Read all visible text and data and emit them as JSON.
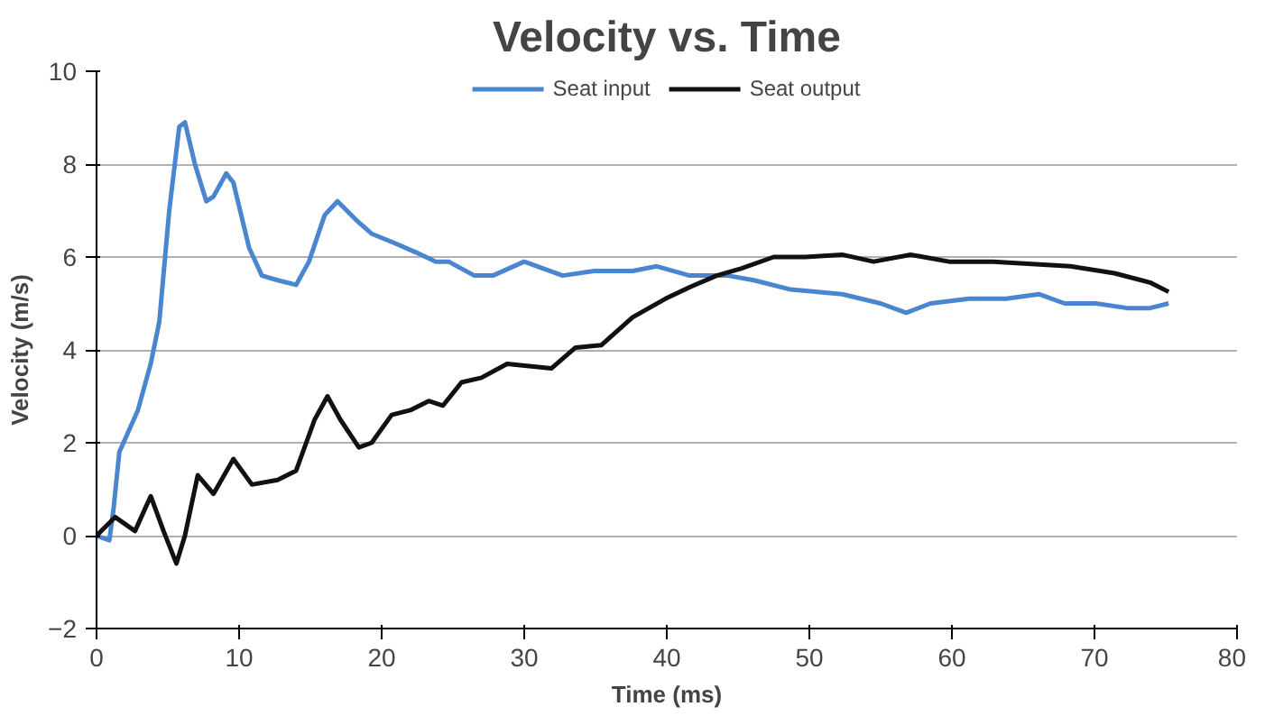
{
  "chart_data": {
    "type": "line",
    "title": "Velocity vs. Time",
    "xlabel": "Time (ms)",
    "ylabel": "Velocity (m/s)",
    "xlim": [
      0,
      80
    ],
    "xticks": [
      0,
      10,
      20,
      30,
      40,
      50,
      60,
      70,
      80
    ],
    "ylim": [
      -2,
      10
    ],
    "yticks": [
      -2,
      0,
      2,
      4,
      6,
      8,
      10
    ],
    "grid": "y",
    "legend": "top",
    "marker": "none",
    "line_style": "solid",
    "series": [
      {
        "name": "Seat input",
        "color": "#4a86d0",
        "x": [
          0,
          0.9,
          1.2,
          1.6,
          2.9,
          3.8,
          4.4,
          5.1,
          5.8,
          6.2,
          6.9,
          7.7,
          8.2,
          9.1,
          9.6,
          10.7,
          11.6,
          12.7,
          14,
          14.9,
          16,
          16.9,
          18.2,
          19.3,
          20.9,
          22.4,
          23.8,
          24.7,
          26.5,
          27.8,
          30,
          32.7,
          34.9,
          37.6,
          39.3,
          41.6,
          44.3,
          46.1,
          48.7,
          52.3,
          55,
          56.8,
          58.5,
          61.2,
          63.8,
          66.1,
          67.9,
          70.1,
          72.3,
          73.9,
          75.2
        ],
        "values": [
          0,
          -0.1,
          0.6,
          1.8,
          2.7,
          3.7,
          4.6,
          7.0,
          8.8,
          8.9,
          8.0,
          7.2,
          7.3,
          7.8,
          7.6,
          6.2,
          5.6,
          5.5,
          5.4,
          5.9,
          6.9,
          7.2,
          6.8,
          6.5,
          6.3,
          6.1,
          5.9,
          5.9,
          5.6,
          5.6,
          5.9,
          5.6,
          5.7,
          5.7,
          5.8,
          5.6,
          5.6,
          5.5,
          5.3,
          5.2,
          5.0,
          4.8,
          5.0,
          5.1,
          5.1,
          5.2,
          5.0,
          5.0,
          4.9,
          4.9,
          5.0
        ]
      },
      {
        "name": "Seat output",
        "color": "#111111",
        "x": [
          0,
          1.3,
          2.7,
          3.8,
          4.7,
          5.6,
          6.2,
          7.1,
          8.2,
          9.6,
          10.9,
          12.7,
          14,
          15.3,
          16.2,
          17.1,
          18.4,
          19.3,
          20.7,
          22,
          23.3,
          24.3,
          25.6,
          27,
          28.8,
          31.9,
          33.6,
          35.4,
          37.6,
          39.9,
          41.6,
          43.5,
          45.2,
          47.5,
          49.7,
          52.3,
          54.5,
          57.1,
          59.8,
          62.9,
          68.3,
          71.4,
          73.9,
          75.2
        ],
        "values": [
          0,
          0.4,
          0.1,
          0.85,
          0.1,
          -0.6,
          0,
          1.3,
          0.9,
          1.65,
          1.1,
          1.2,
          1.4,
          2.5,
          3.0,
          2.5,
          1.9,
          2.0,
          2.6,
          2.7,
          2.9,
          2.8,
          3.3,
          3.4,
          3.7,
          3.6,
          4.05,
          4.1,
          4.7,
          5.1,
          5.35,
          5.6,
          5.75,
          6.0,
          6.0,
          6.05,
          5.9,
          6.05,
          5.9,
          5.9,
          5.8,
          5.65,
          5.45,
          5.25
        ]
      }
    ]
  }
}
